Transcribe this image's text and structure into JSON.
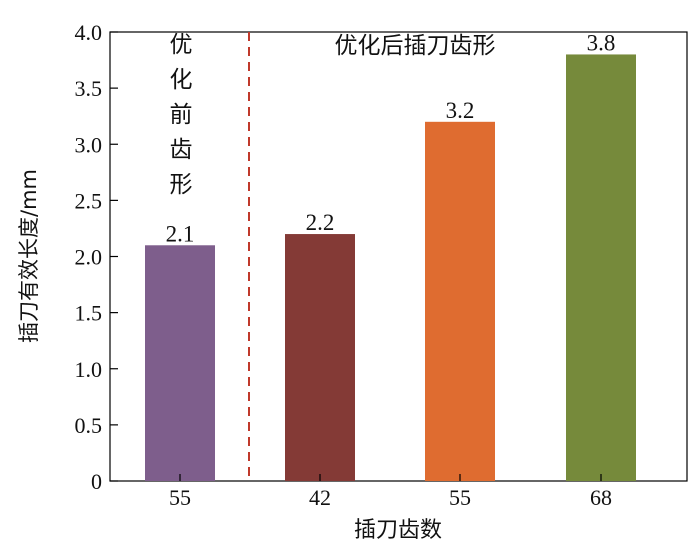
{
  "chart_data": {
    "type": "bar",
    "categories": [
      "55",
      "42",
      "55",
      "68"
    ],
    "values": [
      2.1,
      2.2,
      3.2,
      3.8
    ],
    "value_labels": [
      "2.1",
      "2.2",
      "3.2",
      "3.8"
    ],
    "colors": [
      "#7e5e8c",
      "#843a36",
      "#df6c30",
      "#768a3b"
    ],
    "xlabel": "插刀齿数",
    "ylabel": "插刀有效长度/mm",
    "ylim": [
      0,
      4.0
    ],
    "yticks": [
      "0",
      "0.5",
      "1.0",
      "1.5",
      "2.0",
      "2.5",
      "3.0",
      "3.5",
      "4.0"
    ],
    "grid": false,
    "annotations": {
      "before": [
        "优",
        "化",
        "前",
        "齿",
        "形"
      ],
      "after": "优化后插刀齿形"
    },
    "divider_color": "#c0392b"
  }
}
